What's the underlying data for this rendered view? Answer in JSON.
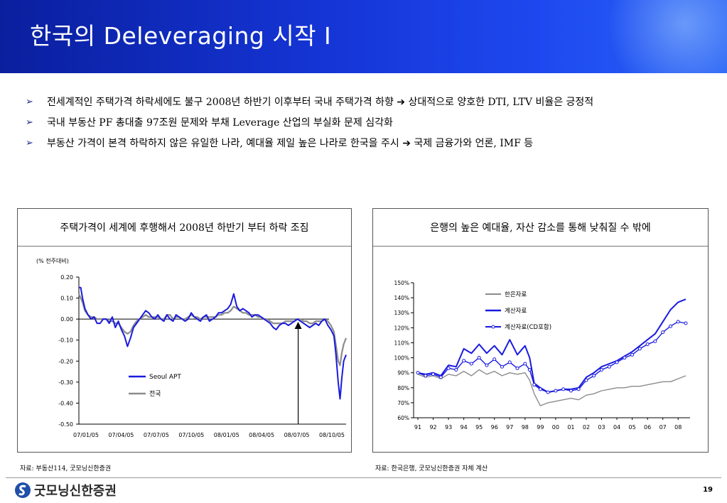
{
  "header": {
    "title": "한국의 Deleveraging 시작 I"
  },
  "bullets": [
    "전세계적인 주택가격 하락세에도 불구 2008년 하반기 이후부터 국내 주택가격 하향 ➔ 상대적으로 양호한 DTI, LTV 비율은 긍정적",
    "국내 부동산 PF 총대출 97조원 문제와 부채 Leverage 산업의 부실화 문제 심각화",
    "부동산 가격이 본격 하락하지 않은 유일한 나라, 예대율 제일 높은 나라로 한국을 주시 ➔ 국제 금융가와 언론, IMF 등"
  ],
  "left_panel": {
    "title": "주택가격이 세계에 후행해서 2008년 하반기 부터 하락 조짐",
    "unit_label": "(% 전주대비)",
    "source": "자료: 부동산114, 굿모닝신한증권"
  },
  "right_panel": {
    "title": "은행의 높은 예대율, 자산 감소를 통해 낮춰질 수 밖에",
    "source": "자료: 한국은행, 굿모닝신한증권 자체 계산"
  },
  "footer": {
    "logo_text": "굿모닝신한증권",
    "page_number": "19"
  },
  "colors": {
    "header_blue": "#1535d6",
    "seoul": "#1a1ae0",
    "national": "#8c8c8c"
  },
  "chart_data": [
    {
      "type": "line",
      "ylim": [
        -0.5,
        0.2
      ],
      "yticks": [
        "0.20",
        "0.10",
        "0.00",
        "-0.10",
        "-0.20",
        "-0.30",
        "-0.40",
        "-0.50"
      ],
      "xticks": [
        "07/01/05",
        "07/04/05",
        "07/07/05",
        "07/10/05",
        "08/01/05",
        "08/04/05",
        "08/07/05",
        "08/10/05"
      ],
      "legend": [
        "Seoul  APT",
        "전국"
      ],
      "legend_position": "inside-left-bottom",
      "annotation": "up-arrow near 08/07/05",
      "x": [
        0,
        0.3,
        0.6,
        1,
        1.5,
        2,
        2.5,
        3,
        3.5,
        4,
        4.5,
        5,
        5.5,
        6,
        6.5,
        7,
        7.5,
        8,
        8.5,
        9,
        9.5,
        10,
        10.5,
        11,
        11.5,
        12,
        12.5,
        13,
        13.5,
        14,
        14.5,
        15,
        15.5,
        16,
        16.5,
        17,
        17.5,
        18,
        18.5,
        19,
        19.5,
        20,
        20.5,
        21,
        21.5,
        22,
        22.5,
        23,
        23.5,
        24,
        24.5,
        25,
        25.5,
        26,
        26.5,
        27,
        27.5,
        28,
        28.5,
        29,
        29.5,
        30,
        30.5,
        31,
        31.5,
        32,
        32.5,
        33,
        33.5,
        34,
        34.5,
        35,
        35.5,
        36,
        36.5,
        37,
        37.5,
        38,
        38.5,
        39,
        39.5,
        40,
        40.5,
        41,
        41.5,
        42,
        42.3,
        42.7,
        43,
        43.3,
        43.6,
        44
      ],
      "series": [
        {
          "name": "Seoul  APT",
          "values": [
            0.15,
            0.15,
            0.1,
            0.05,
            0.02,
            0.0,
            0.01,
            -0.02,
            -0.02,
            0.0,
            0.0,
            -0.02,
            0.01,
            -0.04,
            -0.01,
            -0.05,
            -0.08,
            -0.13,
            -0.09,
            -0.04,
            -0.02,
            0.0,
            0.02,
            0.04,
            0.03,
            0.01,
            0.0,
            0.02,
            0.0,
            -0.01,
            0.02,
            0.0,
            -0.01,
            0.02,
            0.01,
            0.0,
            -0.01,
            0.0,
            0.03,
            0.01,
            0.0,
            -0.01,
            0.01,
            0.02,
            -0.01,
            0.0,
            0.01,
            0.03,
            0.03,
            0.04,
            0.05,
            0.07,
            0.12,
            0.06,
            0.04,
            0.05,
            0.04,
            0.03,
            0.01,
            0.02,
            0.02,
            0.01,
            0.0,
            -0.01,
            -0.02,
            -0.04,
            -0.05,
            -0.03,
            -0.02,
            -0.02,
            -0.03,
            -0.02,
            -0.01,
            0.0,
            -0.01,
            -0.02,
            -0.03,
            -0.04,
            -0.03,
            -0.02,
            -0.03,
            -0.01,
            0.0,
            -0.03,
            -0.05,
            -0.08,
            -0.16,
            -0.3,
            -0.38,
            -0.28,
            -0.2,
            -0.17
          ]
        },
        {
          "name": "전국",
          "values": [
            0.12,
            0.1,
            0.08,
            0.04,
            0.02,
            0.01,
            0.01,
            0.0,
            0.0,
            0.0,
            0.0,
            -0.01,
            -0.01,
            -0.02,
            -0.02,
            -0.04,
            -0.06,
            -0.07,
            -0.06,
            -0.03,
            -0.01,
            0.0,
            0.01,
            0.02,
            0.01,
            0.01,
            0.01,
            0.01,
            0.0,
            0.0,
            0.02,
            0.02,
            0.0,
            0.01,
            0.01,
            0.0,
            0.0,
            0.01,
            0.02,
            0.01,
            0.01,
            0.0,
            0.01,
            0.01,
            0.01,
            0.01,
            0.01,
            0.02,
            0.02,
            0.03,
            0.03,
            0.04,
            0.06,
            0.05,
            0.04,
            0.03,
            0.03,
            0.02,
            0.02,
            0.02,
            0.01,
            0.01,
            0.0,
            0.0,
            -0.01,
            -0.02,
            -0.02,
            -0.02,
            -0.02,
            -0.01,
            -0.01,
            -0.01,
            -0.01,
            0.0,
            0.0,
            -0.01,
            -0.01,
            -0.02,
            -0.02,
            -0.01,
            -0.01,
            -0.01,
            0.0,
            -0.01,
            -0.03,
            -0.06,
            -0.12,
            -0.2,
            -0.22,
            -0.16,
            -0.12,
            -0.09
          ]
        }
      ]
    },
    {
      "type": "line",
      "ylim": [
        60,
        150
      ],
      "yticks": [
        "150%",
        "140%",
        "130%",
        "120%",
        "110%",
        "100%",
        "90%",
        "80%",
        "70%",
        "60%"
      ],
      "xticks": [
        "91",
        "92",
        "93",
        "94",
        "95",
        "96",
        "97",
        "98",
        "99",
        "00",
        "01",
        "02",
        "03",
        "04",
        "05",
        "06",
        "07",
        "08"
      ],
      "legend": [
        "한은자료",
        "계산자료",
        "계산자료(CD포함)"
      ],
      "legend_position": "inside-top-center",
      "x": [
        91,
        91.5,
        92,
        92.5,
        93,
        93.5,
        94,
        94.5,
        95,
        95.5,
        96,
        96.5,
        97,
        97.5,
        98,
        98.3,
        98.6,
        99,
        99.5,
        100,
        100.5,
        101,
        101.5,
        102,
        102.5,
        103,
        103.5,
        104,
        104.5,
        105,
        105.5,
        106,
        106.5,
        107,
        107.5,
        108,
        108.5
      ],
      "series": [
        {
          "name": "한은자료",
          "values": [
            89,
            87,
            88,
            86,
            89,
            88,
            91,
            88,
            92,
            89,
            91,
            88,
            90,
            89,
            90,
            85,
            76,
            68,
            70,
            71,
            72,
            73,
            72,
            75,
            76,
            78,
            79,
            80,
            80,
            81,
            81,
            82,
            83,
            84,
            84,
            86,
            88
          ]
        },
        {
          "name": "계산자료",
          "values": [
            90,
            89,
            90,
            88,
            95,
            94,
            106,
            103,
            109,
            103,
            108,
            102,
            112,
            102,
            108,
            100,
            83,
            80,
            77,
            78,
            79,
            79,
            80,
            87,
            90,
            94,
            96,
            98,
            101,
            104,
            108,
            112,
            116,
            124,
            132,
            137,
            139
          ]
        },
        {
          "name": "계산자료(CD포함)",
          "values": [
            90,
            88,
            89,
            87,
            93,
            92,
            98,
            96,
            100,
            95,
            99,
            94,
            97,
            93,
            96,
            92,
            82,
            79,
            77,
            78,
            79,
            78,
            79,
            85,
            88,
            92,
            94,
            97,
            100,
            102,
            106,
            109,
            111,
            117,
            121,
            124,
            123
          ]
        }
      ]
    }
  ]
}
